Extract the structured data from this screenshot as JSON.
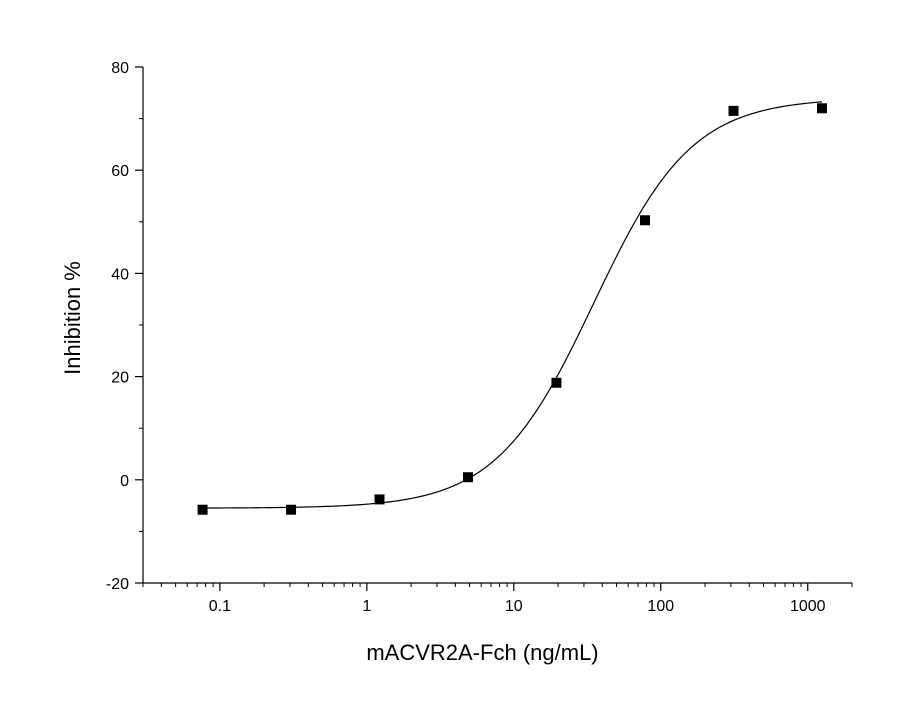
{
  "chart_data": {
    "type": "scatter",
    "title": "",
    "xlabel": "mACVR2A-Fch (ng/mL)",
    "ylabel": "Inhibition %",
    "xscale": "log",
    "xlim": [
      0.03,
      2000
    ],
    "ylim": [
      -20,
      80
    ],
    "x_ticks": [
      {
        "value": 0.1,
        "label": "0.1"
      },
      {
        "value": 1,
        "label": "1"
      },
      {
        "value": 10,
        "label": "10"
      },
      {
        "value": 100,
        "label": "100"
      },
      {
        "value": 1000,
        "label": "1000"
      }
    ],
    "y_ticks": [
      {
        "value": -20,
        "label": "-20"
      },
      {
        "value": 0,
        "label": "0"
      },
      {
        "value": 20,
        "label": "20"
      },
      {
        "value": 40,
        "label": "40"
      },
      {
        "value": 60,
        "label": "60"
      },
      {
        "value": 80,
        "label": "80"
      }
    ],
    "grid": false,
    "legend": false,
    "series": [
      {
        "marker": "square",
        "color": "#000000",
        "x": [
          0.0763,
          0.305,
          1.22,
          4.88,
          19.5,
          78.1,
          312.5,
          1250
        ],
        "y": [
          -5.8,
          -5.8,
          -3.8,
          0.5,
          18.8,
          50.3,
          71.5,
          72.0
        ]
      }
    ],
    "fit": {
      "type": "4PL sigmoid",
      "color": "#000000",
      "bottom": -5.5,
      "top": 74,
      "ec50": 35,
      "hill": 1.3,
      "x_range": [
        0.0763,
        1250
      ]
    }
  }
}
